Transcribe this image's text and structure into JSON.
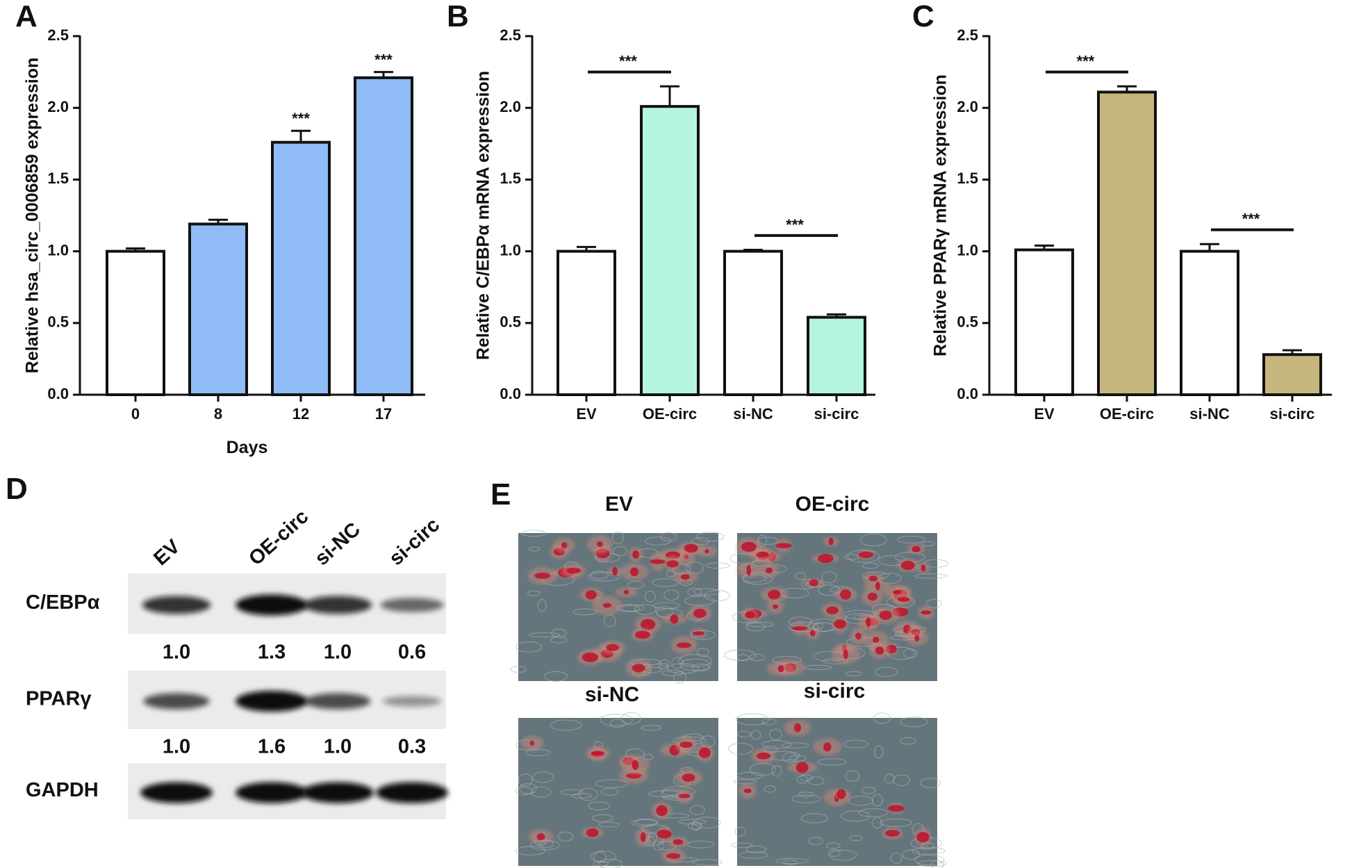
{
  "chart_data": [
    {
      "type": "bar",
      "panel_label": "A",
      "y_label": "Relative hsa_circ_0006859 expression",
      "x_label": "Days",
      "categories": [
        "0",
        "8",
        "12",
        "17"
      ],
      "values": [
        1.0,
        1.19,
        1.76,
        2.21
      ],
      "errors": [
        0.02,
        0.03,
        0.08,
        0.04
      ],
      "colors": [
        "#ffffff",
        "#8fbcf7",
        "#8fbcf7",
        "#8fbcf7"
      ],
      "significance": [
        null,
        null,
        "***",
        "***"
      ],
      "brackets": false,
      "ylim": [
        0,
        2.5
      ],
      "yticks": [
        {
          "value": 0,
          "label": "0.0"
        },
        0.5,
        {
          "value": 1,
          "label": "1.0"
        },
        1.5,
        {
          "value": 2,
          "label": "2.0"
        },
        2.5
      ]
    },
    {
      "type": "bar",
      "panel_label": "B",
      "y_label": "Relative C/EBPα mRNA expression",
      "categories": [
        "EV",
        "OE-circ",
        "si-NC",
        "si-circ"
      ],
      "values": [
        1.0,
        2.01,
        1.0,
        0.54
      ],
      "errors": [
        0.03,
        0.14,
        0.01,
        0.02
      ],
      "colors": [
        "#ffffff",
        "#b3f5e0",
        "#ffffff",
        "#b3f5e0"
      ],
      "significance": [
        null,
        "***",
        null,
        "***"
      ],
      "brackets": true,
      "ylim": [
        0,
        2.5
      ],
      "yticks": [
        {
          "value": 0,
          "label": "0.0"
        },
        0.5,
        {
          "value": 1,
          "label": "1.0"
        },
        1.5,
        {
          "value": 2,
          "label": "2.0"
        },
        2.5
      ]
    },
    {
      "type": "bar",
      "panel_label": "C",
      "y_label": "Relative PPARγ mRNA expression",
      "categories": [
        "EV",
        "OE-circ",
        "si-NC",
        "si-circ"
      ],
      "values": [
        1.01,
        2.11,
        1.0,
        0.28
      ],
      "errors": [
        0.03,
        0.04,
        0.05,
        0.03
      ],
      "colors": [
        "#ffffff",
        "#c4b67d",
        "#ffffff",
        "#c4b67d"
      ],
      "significance": [
        null,
        "***",
        null,
        "***"
      ],
      "brackets": true,
      "ylim": [
        0,
        2.5
      ],
      "yticks": [
        {
          "value": 0,
          "label": "0.0"
        },
        0.5,
        {
          "value": 1,
          "label": "1.0"
        },
        1.5,
        {
          "value": 2,
          "label": "2.0"
        },
        2.5
      ]
    }
  ],
  "panel_d": {
    "panel_label": "D",
    "columns": [
      "EV",
      "OE-circ",
      "si-NC",
      "si-circ"
    ],
    "rows": [
      {
        "label": "C/EBPα",
        "quantification": [
          1.0,
          1.3,
          1.0,
          0.6
        ],
        "value_labels": [
          "1.0",
          "1.3",
          "1.0",
          "0.6"
        ]
      },
      {
        "label": "PPARγ",
        "quantification": [
          1.0,
          1.6,
          1.0,
          0.3
        ],
        "value_labels": [
          "1.0",
          "1.6",
          "1.0",
          "0.3"
        ]
      },
      {
        "label": "GAPDH"
      }
    ]
  },
  "panel_e": {
    "panel_label": "E",
    "images": [
      {
        "label": "EV"
      },
      {
        "label": "OE-circ"
      },
      {
        "label": "si-NC"
      },
      {
        "label": "si-circ"
      }
    ]
  }
}
